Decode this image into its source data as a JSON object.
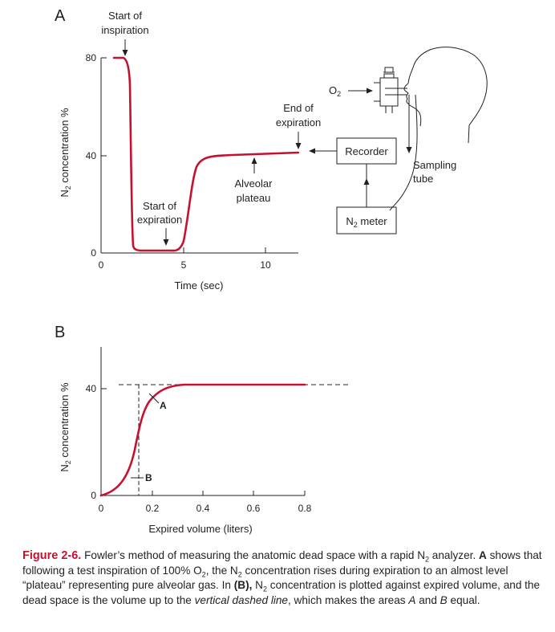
{
  "panel_a": {
    "panel_label": "A",
    "ylabel": "N",
    "ylabel_sub": "2",
    "ylabel_rest": " concentration %",
    "xlabel": "Time (sec)",
    "y_ticks": [
      "80",
      "40",
      "0"
    ],
    "x_ticks": [
      "0",
      "5",
      "10"
    ],
    "annotations": {
      "start_insp_1": "Start of",
      "start_insp_2": "inspiration",
      "end_exp_1": "End of",
      "end_exp_2": "expiration",
      "start_exp_1": "Start of",
      "start_exp_2": "expiration",
      "alveolar_1": "Alveolar",
      "alveolar_2": "plateau"
    },
    "apparatus": {
      "o2": "O",
      "o2_sub": "2",
      "recorder": "Recorder",
      "n2_meter": "N",
      "n2_meter_sub": "2",
      "n2_meter_rest": " meter",
      "sampling_1": "Sampling",
      "sampling_2": "tube"
    }
  },
  "panel_b": {
    "panel_label": "B",
    "ylabel": "N",
    "ylabel_sub": "2",
    "ylabel_rest": " concentration %",
    "xlabel": "Expired volume (liters)",
    "y_ticks": [
      "40",
      "0"
    ],
    "x_ticks": [
      "0",
      "0.2",
      "0.4",
      "0.6",
      "0.8"
    ],
    "area_a": "A",
    "area_b": "B"
  },
  "chart_data": [
    {
      "type": "line",
      "x": [
        0,
        1,
        1.5,
        2,
        2.5,
        3,
        4,
        4.5,
        5,
        5.5,
        6,
        7,
        8,
        9,
        10,
        11,
        12
      ],
      "y": [
        80,
        80,
        40,
        2,
        1,
        1,
        1,
        1,
        3,
        28,
        37,
        39.5,
        40,
        40.3,
        40.6,
        40.9,
        41.2
      ],
      "xlim": [
        0,
        12
      ],
      "ylim": [
        0,
        80
      ],
      "grid": false
    },
    {
      "type": "line",
      "x": [
        0,
        0.05,
        0.1,
        0.13,
        0.15,
        0.18,
        0.21,
        0.25,
        0.3,
        0.4,
        0.5,
        0.6,
        0.7,
        0.8
      ],
      "y": [
        0,
        2,
        9,
        17,
        26,
        33,
        37,
        40,
        41.5,
        41.8,
        41.8,
        41.8,
        41.8,
        41.8
      ],
      "xlim": [
        0,
        0.8
      ],
      "ylim": [
        0,
        40
      ],
      "grid": false
    }
  ],
  "caption": {
    "label": "Figure 2-6.",
    "part1": " Fowler’s method of measuring the anatomic dead space with a rapid N",
    "sub1": "2",
    "part2": " analyzer. ",
    "bold_a": "A",
    "part3": " shows that following a test inspiration of 100% O",
    "sub2": "2",
    "part4": ", the N",
    "sub3": "2",
    "part5": " concentration rises during expiration to an almost level “plateau” representing pure alveolar gas. In ",
    "bold_b": "(B),",
    "part6": " N",
    "sub4": "2",
    "part7": " concentration is plotted against expired volume, and the dead space is the volume up to the ",
    "italic": "vertical dashed line",
    "part8": ", which makes the areas ",
    "italic_a": "A",
    "part9": " and ",
    "italic_b": "B",
    "part10": " equal."
  },
  "colors": {
    "curve": "#c8102e",
    "ink": "#231f20"
  }
}
